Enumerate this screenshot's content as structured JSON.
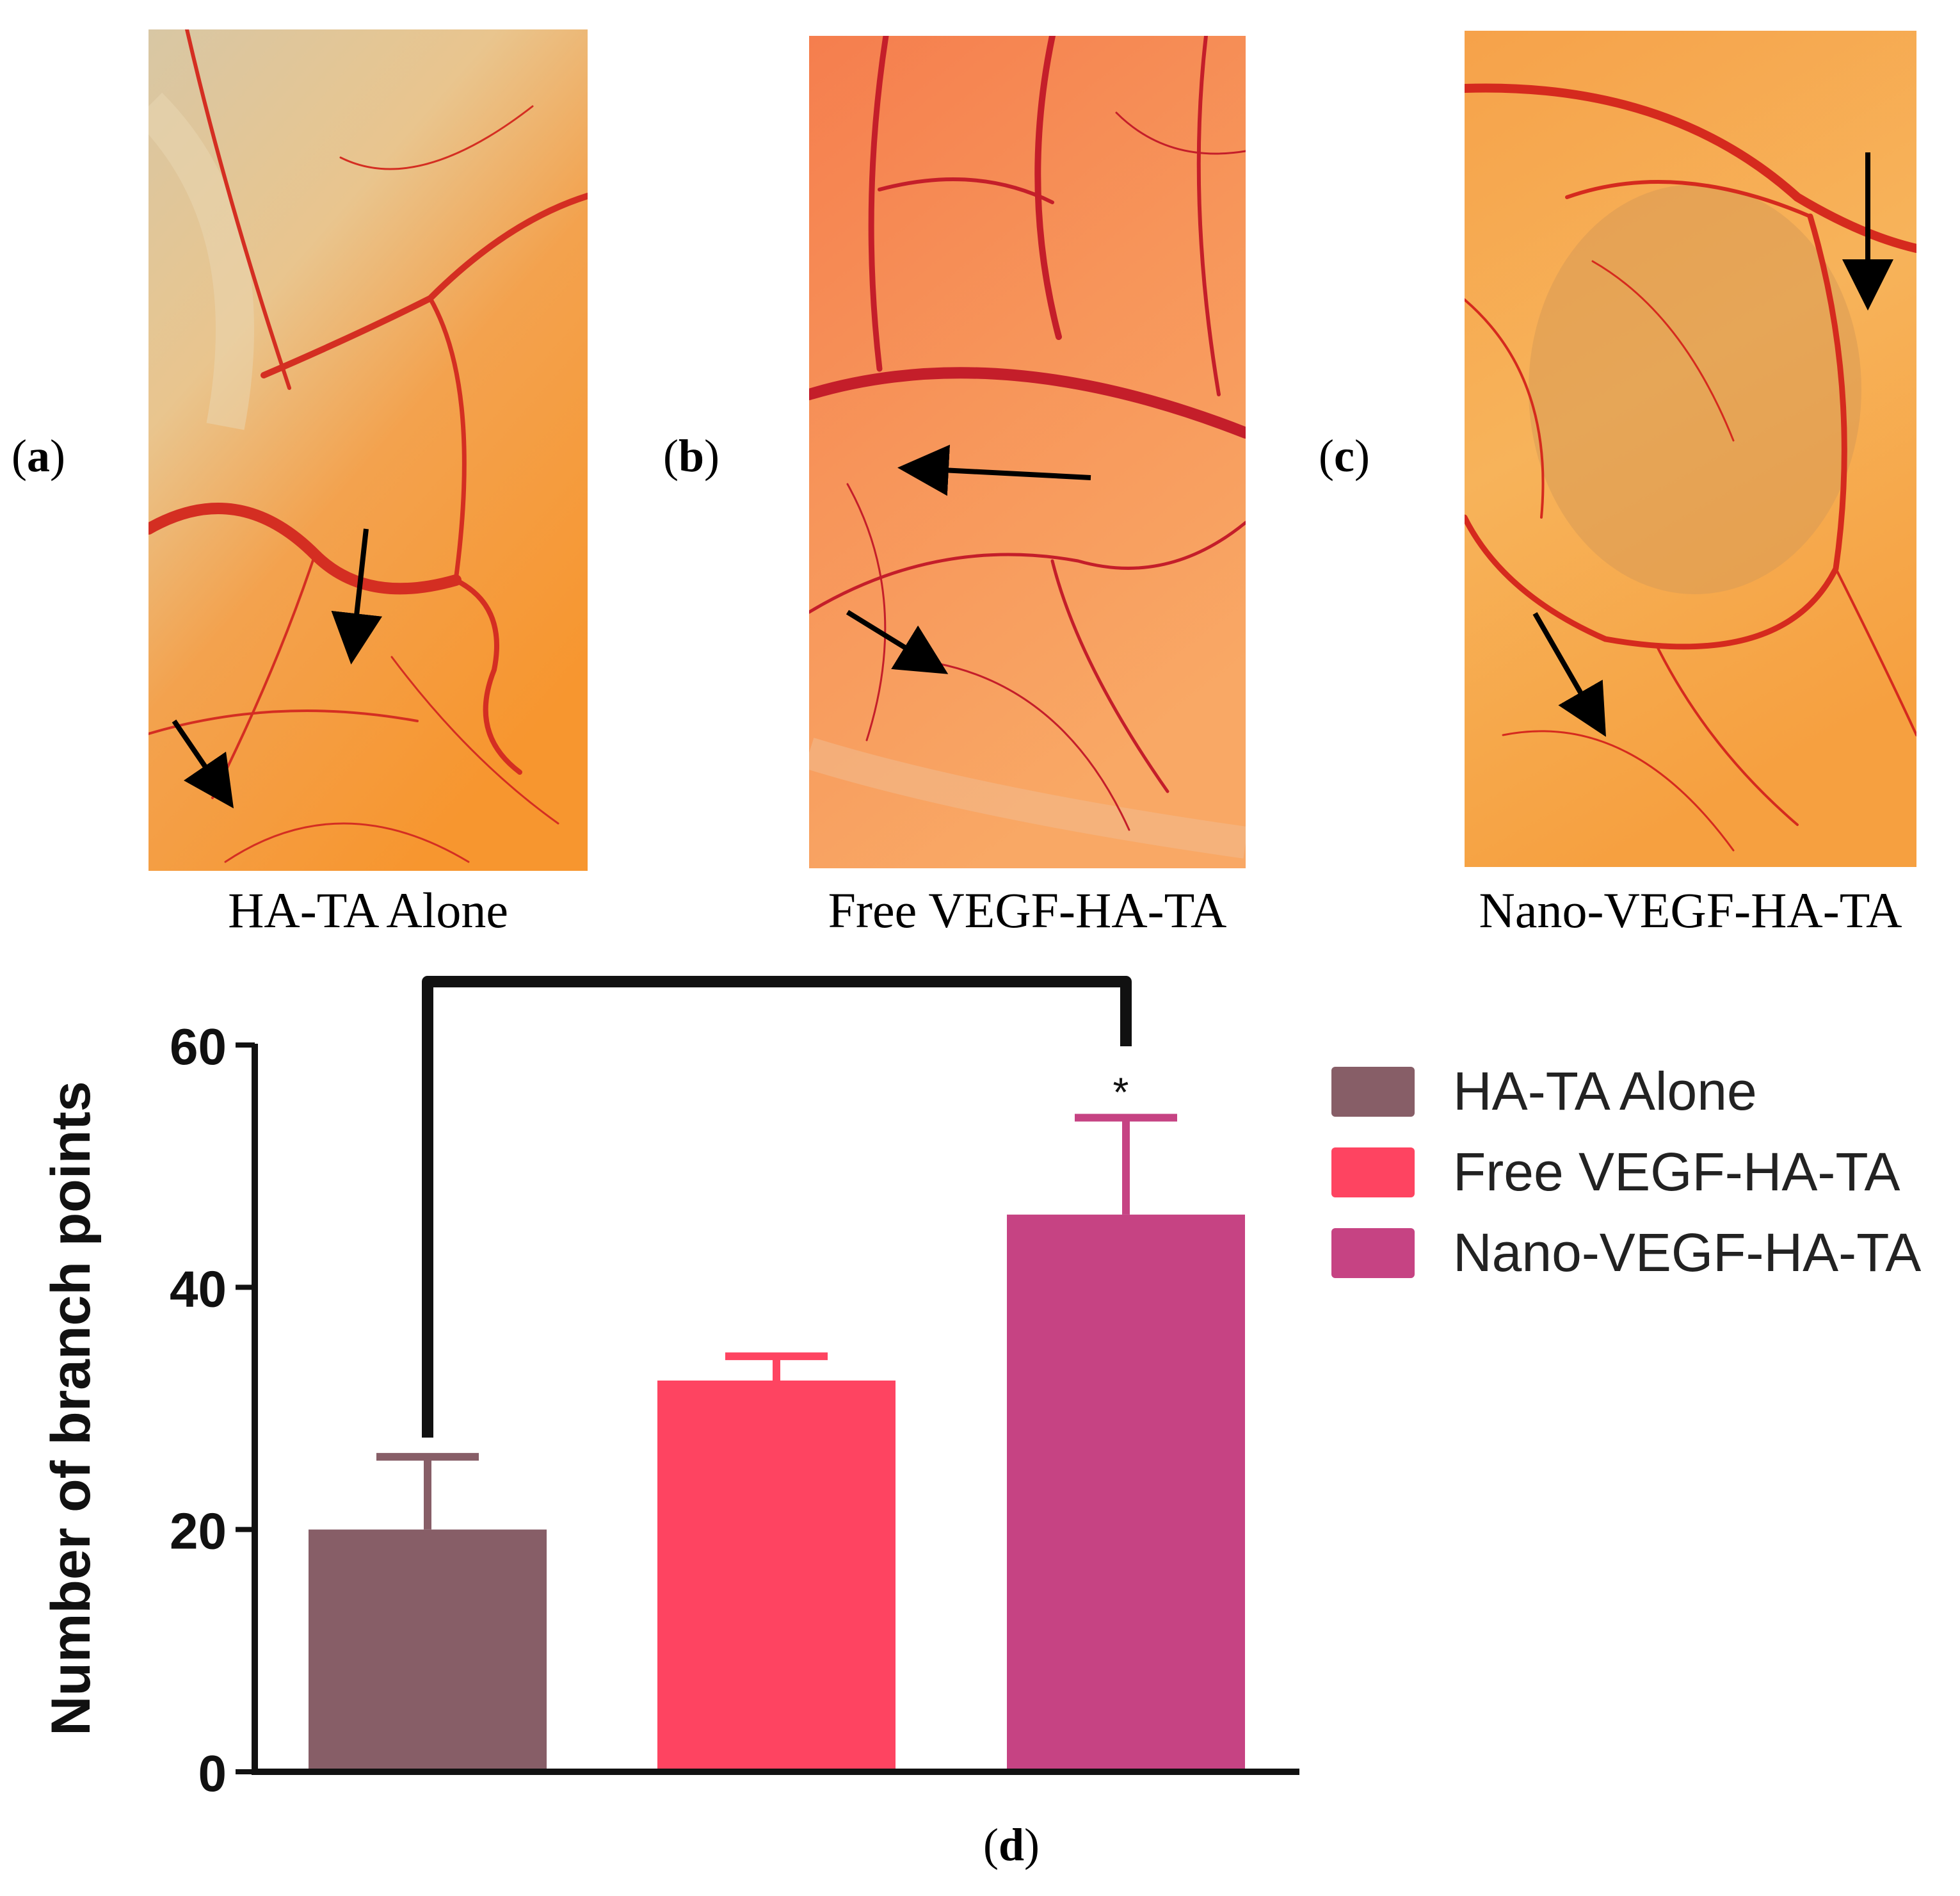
{
  "panels": [
    {
      "label": "a",
      "caption": "HA-TA Alone"
    },
    {
      "label": "b",
      "caption": "Free VEGF-HA-TA"
    },
    {
      "label": "c",
      "caption": "Nano-VEGF-HA-TA"
    }
  ],
  "colors": {
    "bar1": "#875E67",
    "bar2": "#FE4461",
    "bar3": "#C64383",
    "axis": "#111111",
    "vessel": "#D02A1E",
    "photo_bg": "#F7A651"
  },
  "chart_data": {
    "type": "bar",
    "panel_label": "d",
    "categories": [
      "HA-TA Alone",
      "Free VEGF-HA-TA",
      "Nano-VEGF-HA-TA"
    ],
    "values": [
      20,
      32.3,
      46
    ],
    "error": [
      6,
      2,
      8
    ],
    "ylabel": "Number of branch points",
    "xlabel": "",
    "ylim": [
      0,
      60
    ],
    "yticks": [
      0,
      20,
      40,
      60
    ],
    "significance": {
      "between": [
        0,
        2
      ],
      "marker": "*"
    },
    "legend": [
      "HA-TA Alone",
      "Free VEGF-HA-TA",
      "Nano-VEGF-HA-TA"
    ],
    "legend_position": "top-right"
  }
}
